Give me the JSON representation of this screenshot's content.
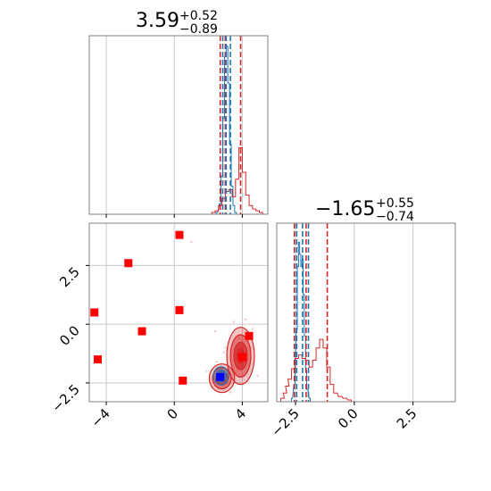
{
  "titles": {
    "param1": {
      "value": "3.59",
      "plus": "+0.52",
      "minus": "−0.89"
    },
    "param2": {
      "value": "−1.65",
      "plus": "+0.55",
      "minus": "−0.74"
    }
  },
  "colors": {
    "red": "#d62728",
    "blue": "#1f77b4",
    "marker_red": "#ff0000",
    "marker_blue": "#0000ff",
    "grid": "#c8c8c8",
    "frame": "#808080"
  },
  "chart_data": {
    "type": "corner",
    "params": [
      {
        "range": [
          -5.0,
          5.5
        ],
        "ticks": [
          -4,
          0,
          4
        ],
        "tick_labels": [
          "−4",
          "0",
          "4"
        ]
      },
      {
        "range": [
          -3.3,
          4.3
        ],
        "ticks": [
          -2.5,
          0.0,
          2.5
        ],
        "tick_labels": [
          "−2.5",
          "0.0",
          "2.5"
        ]
      }
    ],
    "grid": true,
    "hist_param1": {
      "red": {
        "quantiles": [
          2.7,
          3.0,
          3.9
        ],
        "values": [
          [
            2.3,
            0.01
          ],
          [
            2.5,
            0.02
          ],
          [
            2.7,
            0.05
          ],
          [
            2.9,
            0.09
          ],
          [
            3.1,
            0.13
          ],
          [
            3.3,
            0.14
          ],
          [
            3.5,
            0.1
          ],
          [
            3.7,
            0.2
          ],
          [
            3.9,
            0.38
          ],
          [
            4.1,
            0.24
          ],
          [
            4.3,
            0.11
          ],
          [
            4.5,
            0.05
          ],
          [
            4.7,
            0.03
          ],
          [
            4.9,
            0.02
          ],
          [
            5.1,
            0.01
          ]
        ]
      },
      "blue": {
        "quantiles": [
          2.85,
          3.05,
          3.3
        ],
        "values": [
          [
            2.5,
            0.01
          ],
          [
            2.7,
            0.06
          ],
          [
            2.8,
            0.22
          ],
          [
            2.9,
            0.55
          ],
          [
            3.0,
            0.9
          ],
          [
            3.1,
            0.96
          ],
          [
            3.2,
            0.75
          ],
          [
            3.3,
            0.4
          ],
          [
            3.4,
            0.16
          ],
          [
            3.5,
            0.05
          ],
          [
            3.6,
            0.01
          ]
        ]
      }
    },
    "hist_param2": {
      "red": {
        "quantiles": [
          -2.55,
          -2.05,
          -1.15
        ],
        "values": [
          [
            -3.05,
            0.02
          ],
          [
            -2.95,
            0.05
          ],
          [
            -2.85,
            0.09
          ],
          [
            -2.75,
            0.13
          ],
          [
            -2.6,
            0.19
          ],
          [
            -2.45,
            0.25
          ],
          [
            -2.3,
            0.27
          ],
          [
            -2.15,
            0.25
          ],
          [
            -2.0,
            0.24
          ],
          [
            -1.85,
            0.2
          ],
          [
            -1.7,
            0.24
          ],
          [
            -1.55,
            0.31
          ],
          [
            -1.4,
            0.36
          ],
          [
            -1.25,
            0.31
          ],
          [
            -1.1,
            0.2
          ],
          [
            -0.95,
            0.1
          ],
          [
            -0.8,
            0.05
          ],
          [
            -0.6,
            0.03
          ],
          [
            -0.4,
            0.02
          ],
          [
            -0.2,
            0.01
          ]
        ]
      },
      "blue": {
        "quantiles": [
          -2.45,
          -2.2,
          -1.95
        ],
        "values": [
          [
            -2.65,
            0.02
          ],
          [
            -2.55,
            0.1
          ],
          [
            -2.45,
            0.42
          ],
          [
            -2.4,
            0.78
          ],
          [
            -2.35,
            0.92
          ],
          [
            -2.3,
            0.85
          ],
          [
            -2.25,
            0.78
          ],
          [
            -2.2,
            0.82
          ],
          [
            -2.15,
            0.62
          ],
          [
            -2.1,
            0.38
          ],
          [
            -2.05,
            0.18
          ],
          [
            -2.0,
            0.07
          ],
          [
            -1.9,
            0.02
          ]
        ]
      }
    },
    "scatter_markers": [
      [
        0.3,
        3.8
      ],
      [
        -2.7,
        2.6
      ],
      [
        -4.7,
        0.5
      ],
      [
        0.3,
        0.6
      ],
      [
        -1.9,
        -0.3
      ],
      [
        4.4,
        -0.5
      ],
      [
        -4.5,
        -1.5
      ],
      [
        0.5,
        -2.4
      ],
      [
        4.0,
        -1.4
      ]
    ],
    "truth_marker": [
      2.7,
      -2.25
    ],
    "contours": {
      "red": {
        "center": [
          3.9,
          -1.35
        ],
        "rx": 0.6,
        "ry": 0.9,
        "blobs": [
          [
            2.8,
            -2.3,
            0.55,
            0.45
          ]
        ]
      },
      "blue": {
        "center": [
          2.75,
          -2.2
        ],
        "rx": 0.35,
        "ry": 0.3
      }
    }
  }
}
